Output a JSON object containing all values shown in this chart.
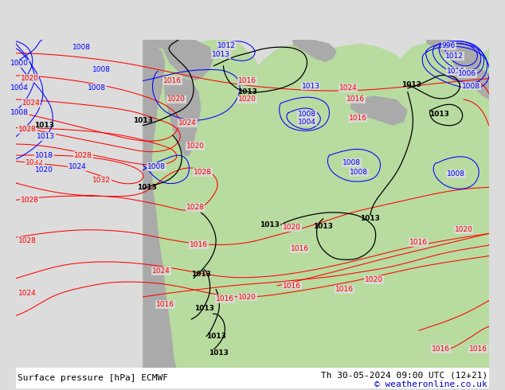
{
  "bottom_left": "Surface pressure [hPa] ECMWF",
  "bottom_right": "Th 30-05-2024 09:00 UTC (12+21)",
  "copyright": "© weatheronline.co.uk",
  "bg_color": "#dcdcdc",
  "land_color": "#b8dba0",
  "mountain_color": "#aaaaaa",
  "fig_width": 6.34,
  "fig_height": 4.9,
  "dpi": 100,
  "text_color_bottom": "#000000",
  "text_color_copyright": "#0000cc"
}
